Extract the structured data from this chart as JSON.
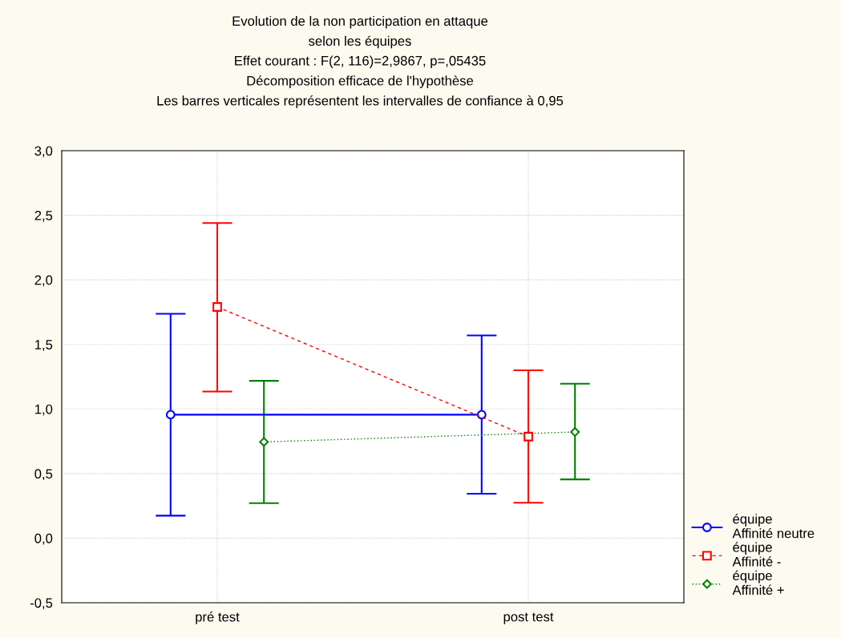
{
  "chart_data": {
    "type": "line",
    "title": "Evolution de la non participation en attaque\nselon les équipes\nEffet courant : F(2, 116)=2,9867, p=,05435\nDécomposition efficace de l'hypothèse\nLes barres verticales représentent les intervalles de confiance à 0,95",
    "categories": [
      "pré test",
      "post test"
    ],
    "series": [
      {
        "name": "équipe\nAffinité neutre",
        "color": "#0000ff",
        "values": [
          0.956,
          0.956
        ],
        "errors": [
          [
            0.174,
            1.737
          ],
          [
            0.344,
            1.57
          ]
        ],
        "marker": "circle",
        "line_style": "solid"
      },
      {
        "name": "équipe\nAffinité -",
        "color": "#ff0000",
        "values": [
          1.79,
          0.786
        ],
        "errors": [
          [
            1.135,
            2.44
          ],
          [
            0.274,
            1.3
          ]
        ],
        "marker": "square",
        "line_style": "dashed"
      },
      {
        "name": "équipe\nAffinité +",
        "color": "#008000",
        "values": [
          0.745,
          0.822
        ],
        "errors": [
          [
            0.271,
            1.218
          ],
          [
            0.455,
            1.196
          ]
        ],
        "marker": "diamond",
        "line_style": "dotted"
      }
    ],
    "ylim": [
      -0.5,
      3.0
    ],
    "yticks": [
      {
        "value": -0.5,
        "label": "-0,5"
      },
      {
        "value": 0.0,
        "label": "0,0"
      },
      {
        "value": 0.5,
        "label": "0,5"
      },
      {
        "value": 1.0,
        "label": "1,0"
      },
      {
        "value": 1.5,
        "label": "1,5"
      },
      {
        "value": 2.0,
        "label": "2,0"
      },
      {
        "value": 2.5,
        "label": "2,5"
      },
      {
        "value": 3.0,
        "label": "3,0"
      }
    ],
    "grid": true,
    "legend": "bottom right"
  }
}
